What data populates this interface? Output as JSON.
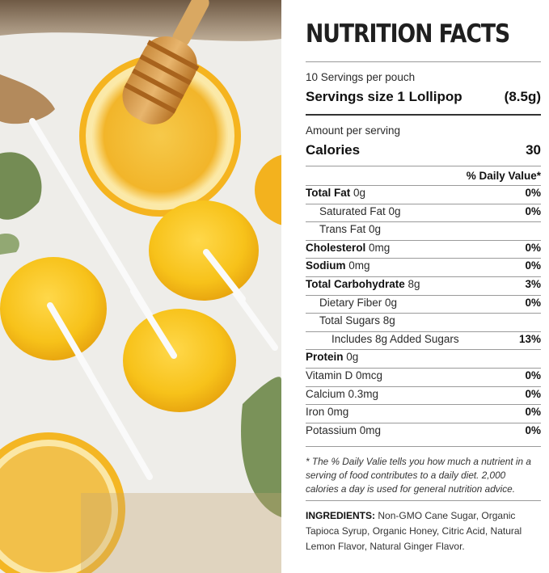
{
  "title": "NUTRITION FACTS",
  "servings_per": "10 Servings per pouch",
  "serving_size": {
    "label": "Servings size 1 Lollipop",
    "value": "(8.5g)"
  },
  "amount_per": "Amount per serving",
  "calories": {
    "label": "Calories",
    "value": "30"
  },
  "daily_value_header": "% Daily Value*",
  "nutrients": [
    {
      "bold": "Total Fat",
      "rest": " 0g",
      "pct": "0%"
    },
    {
      "bold": "",
      "rest": "Saturated Fat 0g",
      "pct": "0%"
    },
    {
      "bold": "",
      "rest": "Trans Fat 0g",
      "pct": ""
    },
    {
      "bold": "Cholesterol",
      "rest": " 0mg",
      "pct": "0%"
    },
    {
      "bold": "Sodium",
      "rest": " 0mg",
      "pct": "0%"
    },
    {
      "bold": "Total Carbohydrate",
      "rest": " 8g",
      "pct": "3%"
    },
    {
      "bold": "",
      "rest": "Dietary Fiber 0g",
      "pct": "0%"
    },
    {
      "bold": "",
      "rest": "Total Sugars 8g",
      "pct": ""
    },
    {
      "bold": "",
      "rest": "Includes 8g Added Sugars",
      "pct": "13%"
    },
    {
      "bold": "Protein",
      "rest": " 0g",
      "pct": ""
    },
    {
      "bold": "",
      "rest": "Vitamin D 0mcg",
      "pct": "0%"
    },
    {
      "bold": "",
      "rest": "Calcium 0.3mg",
      "pct": "0%"
    },
    {
      "bold": "",
      "rest": "Iron 0mg",
      "pct": "0%"
    },
    {
      "bold": "",
      "rest": "Potassium 0mg",
      "pct": "0%"
    }
  ],
  "footnote": "* The % Daily Valie tells you how much a nutrient in a serving of food contributes to a daily diet. 2,000 calories a day is used for general nutrition advice.",
  "ingredients": {
    "label": "INGREDIENTS:",
    "text": " Non-GMO Cane Sugar, Organic Tapioca Syrup, Organic Honey, Citric Acid, Natural Lemon Flavor, Natural Ginger Flavor."
  }
}
